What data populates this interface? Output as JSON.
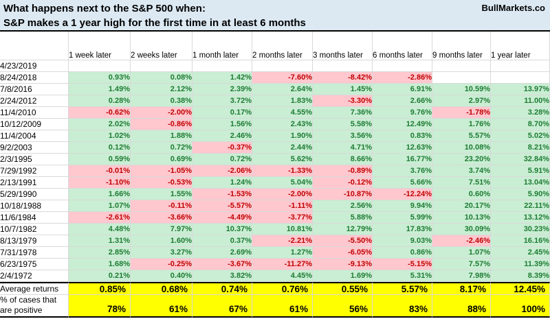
{
  "brand": "BullMarkets.co",
  "title": {
    "line1": "What happens next to the S&P 500 when:",
    "line2": "S&P makes a 1 year high for the first time in at least 6 months"
  },
  "colors": {
    "positive_bg": "#C9EED3",
    "positive_text": "#1E7B34",
    "negative_bg": "#FFC7CE",
    "negative_text": "#C00000",
    "summary_bg": "#FFFF00",
    "summary_text": "#000000",
    "header_bg": "#DCE9F3",
    "grid_line": "#D9D9D9"
  },
  "chart_data": {
    "type": "table",
    "title": "What happens next to the S&P 500 when: S&P makes a 1 year high for the first time in at least 6 months",
    "columns": [
      "1 week later",
      "2 weeks later",
      "1 month later",
      "2 months later",
      "3 months later",
      "6 months later",
      "9 months later",
      "1 year later"
    ],
    "rows": [
      {
        "date": "4/23/2019",
        "values": [
          "",
          "",
          "",
          "",
          "",
          "",
          "",
          ""
        ]
      },
      {
        "date": "8/24/2018",
        "values": [
          "0.93%",
          "0.08%",
          "1.42%",
          "-7.60%",
          "-8.42%",
          "-2.86%",
          "",
          ""
        ]
      },
      {
        "date": "7/8/2016",
        "values": [
          "1.49%",
          "2.12%",
          "2.39%",
          "2.64%",
          "1.45%",
          "6.91%",
          "10.59%",
          "13.97%"
        ]
      },
      {
        "date": "2/24/2012",
        "values": [
          "0.28%",
          "0.38%",
          "3.72%",
          "1.83%",
          "-3.30%",
          "2.66%",
          "2.97%",
          "11.00%"
        ]
      },
      {
        "date": "11/4/2010",
        "values": [
          "-0.62%",
          "-2.00%",
          "0.17%",
          "4.55%",
          "7.36%",
          "9.76%",
          "-1.78%",
          "3.28%"
        ]
      },
      {
        "date": "10/12/2009",
        "values": [
          "2.02%",
          "-0.86%",
          "1.56%",
          "2.43%",
          "5.58%",
          "12.49%",
          "1.76%",
          "8.70%"
        ]
      },
      {
        "date": "11/4/2004",
        "values": [
          "1.02%",
          "1.88%",
          "2.46%",
          "1.90%",
          "3.56%",
          "0.83%",
          "5.57%",
          "5.02%"
        ]
      },
      {
        "date": "9/2/2003",
        "values": [
          "0.12%",
          "0.72%",
          "-0.37%",
          "2.44%",
          "4.71%",
          "12.63%",
          "10.08%",
          "8.21%"
        ]
      },
      {
        "date": "2/3/1995",
        "values": [
          "0.59%",
          "0.69%",
          "0.72%",
          "5.62%",
          "8.66%",
          "16.77%",
          "23.20%",
          "32.84%"
        ]
      },
      {
        "date": "7/29/1992",
        "values": [
          "-0.01%",
          "-1.05%",
          "-2.06%",
          "-1.33%",
          "-0.89%",
          "3.76%",
          "3.74%",
          "5.91%"
        ]
      },
      {
        "date": "2/13/1991",
        "values": [
          "-1.10%",
          "-0.53%",
          "1.24%",
          "5.04%",
          "-0.12%",
          "5.66%",
          "7.51%",
          "13.04%"
        ]
      },
      {
        "date": "5/29/1990",
        "values": [
          "1.66%",
          "1.55%",
          "-1.53%",
          "-2.00%",
          "-10.87%",
          "-12.24%",
          "0.60%",
          "5.90%"
        ]
      },
      {
        "date": "10/18/1988",
        "values": [
          "1.07%",
          "-0.11%",
          "-5.57%",
          "-1.11%",
          "2.56%",
          "9.94%",
          "20.17%",
          "22.11%"
        ]
      },
      {
        "date": "11/6/1984",
        "values": [
          "-2.61%",
          "-3.66%",
          "-4.49%",
          "-3.77%",
          "5.88%",
          "5.99%",
          "10.13%",
          "13.12%"
        ]
      },
      {
        "date": "10/7/1982",
        "values": [
          "4.48%",
          "7.97%",
          "10.37%",
          "10.81%",
          "12.79%",
          "17.83%",
          "30.09%",
          "30.23%"
        ]
      },
      {
        "date": "8/13/1979",
        "values": [
          "1.31%",
          "1.60%",
          "0.37%",
          "-2.21%",
          "-5.50%",
          "9.03%",
          "-2.46%",
          "16.16%"
        ]
      },
      {
        "date": "7/31/1978",
        "values": [
          "2.85%",
          "3.27%",
          "2.69%",
          "1.27%",
          "-6.05%",
          "0.86%",
          "1.07%",
          "2.45%"
        ]
      },
      {
        "date": "6/23/1975",
        "values": [
          "1.68%",
          "-0.25%",
          "-3.67%",
          "-11.27%",
          "-9.13%",
          "-5.15%",
          "7.57%",
          "11.39%"
        ]
      },
      {
        "date": "2/4/1972",
        "values": [
          "0.21%",
          "0.40%",
          "3.82%",
          "4.45%",
          "1.69%",
          "5.31%",
          "7.98%",
          "8.39%"
        ]
      }
    ],
    "summary_rows": [
      {
        "label": "Average returns",
        "label_lines": [
          "Average returns"
        ],
        "values": [
          "0.85%",
          "0.68%",
          "0.74%",
          "0.76%",
          "0.55%",
          "5.57%",
          "8.17%",
          "12.45%"
        ]
      },
      {
        "label": "% of cases that are positive",
        "label_lines": [
          "% of cases that",
          "are positive"
        ],
        "values": [
          "78%",
          "61%",
          "67%",
          "61%",
          "56%",
          "83%",
          "88%",
          "100%"
        ]
      }
    ],
    "legend": {
      "positive_fill": "gain",
      "negative_fill": "loss",
      "summary_fill": "aggregate"
    }
  }
}
